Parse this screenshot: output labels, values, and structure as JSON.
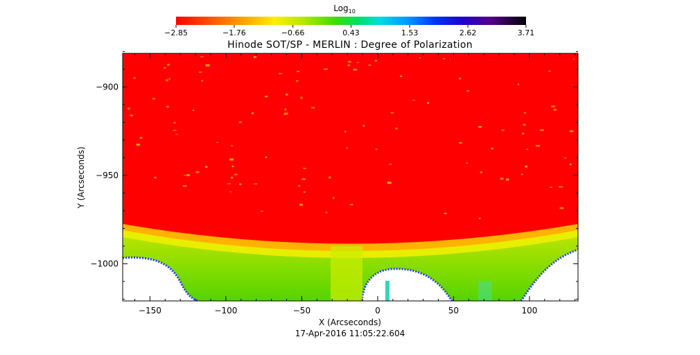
{
  "chart_data": {
    "type": "heatmap",
    "title": "Hinode SOT/SP - MERLIN : Degree of Polarization",
    "subtitle": "",
    "xlabel": "X (Arcseconds)",
    "ylabel": "Y (Arcseconds)",
    "date_label": "17-Apr-2016 11:05:22.604",
    "xlim": [
      -168,
      132
    ],
    "ylim": [
      -1021,
      -881
    ],
    "x_ticks": [
      -150,
      -100,
      -50,
      0,
      50,
      100
    ],
    "x_tick_labels": [
      "−150",
      "−100",
      "−50",
      "0",
      "50",
      "100"
    ],
    "y_ticks": [
      -900,
      -950,
      -1000
    ],
    "y_tick_labels": [
      "−900",
      "−950",
      "−1000"
    ],
    "grid": false,
    "colorbar": {
      "label": "Log",
      "label_subscript": "10",
      "min": -2.85,
      "max": 3.71,
      "ticks": [
        -2.85,
        -1.76,
        -0.66,
        0.43,
        1.53,
        2.62,
        3.71
      ],
      "tick_labels": [
        "−2.85",
        "−1.76",
        "−0.66",
        "0.43",
        "1.53",
        "2.62",
        "3.71"
      ],
      "placement": "top"
    },
    "regions": {
      "on_disk_value": -2.85,
      "limb_band_value": -0.9,
      "off_limb_value": -0.2,
      "no_data_color": "#ffffff"
    },
    "colors": {
      "red": "#ff0000",
      "orange": "#ff9900",
      "yellow": "#ffee00",
      "green": "#88dd00",
      "cyan": "#00ddcc",
      "blue": "#0000ff",
      "purple": "#7700aa",
      "black": "#000000"
    }
  }
}
